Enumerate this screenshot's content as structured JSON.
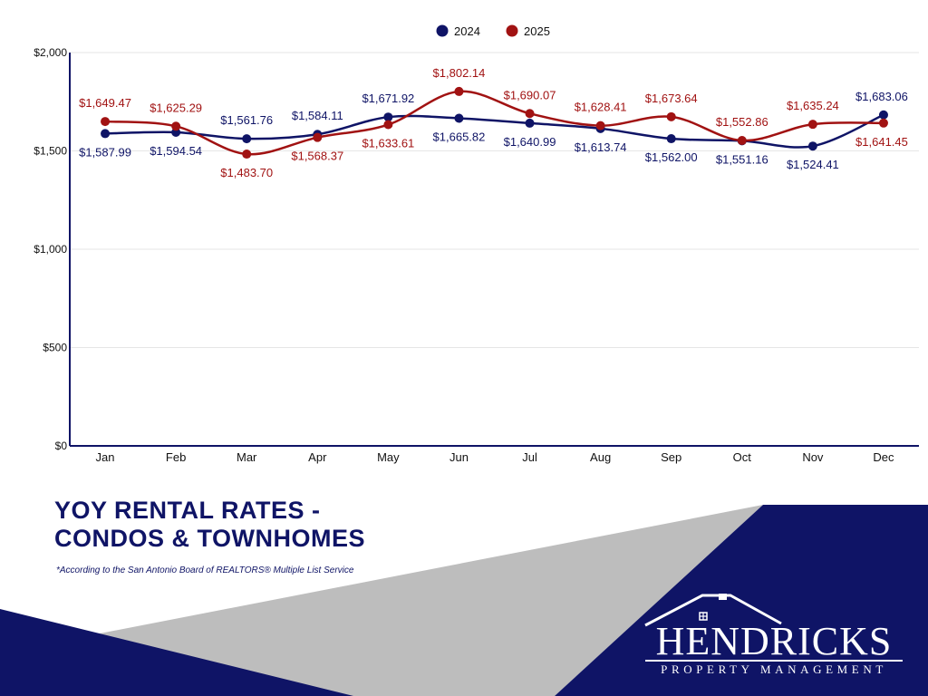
{
  "chart_data": {
    "type": "line",
    "categories": [
      "Jan",
      "Feb",
      "Mar",
      "Apr",
      "May",
      "Jun",
      "Jul",
      "Aug",
      "Sep",
      "Oct",
      "Nov",
      "Dec"
    ],
    "series": [
      {
        "name": "2024",
        "color": "#0f1466",
        "values": [
          1587.99,
          1594.54,
          1561.76,
          1584.11,
          1671.92,
          1665.82,
          1640.99,
          1613.74,
          1562.0,
          1551.16,
          1524.41,
          1683.06
        ],
        "labels": [
          "$1,587.99",
          "$1,594.54",
          "$1,561.76",
          "$1,584.11",
          "$1,671.92",
          "$1,665.82",
          "$1,640.99",
          "$1,613.74",
          "$1,562.00",
          "$1,551.16",
          "$1,524.41",
          "$1,683.06"
        ]
      },
      {
        "name": "2025",
        "color": "#a11212",
        "values": [
          1649.47,
          1625.29,
          1483.7,
          1568.37,
          1633.61,
          1802.14,
          1690.07,
          1628.41,
          1673.64,
          1552.86,
          1635.24,
          1641.45
        ],
        "labels": [
          "$1,649.47",
          "$1,625.29",
          "$1,483.70",
          "$1,568.37",
          "$1,633.61",
          "$1,802.14",
          "$1,690.07",
          "$1,628.41",
          "$1,673.64",
          "$1,552.86",
          "$1,635.24",
          "$1,641.45"
        ]
      }
    ],
    "yticks": [
      0,
      500,
      1000,
      1500,
      2000
    ],
    "ytick_labels": [
      "$0",
      "$500",
      "$1,000",
      "$1,500",
      "$2,000"
    ],
    "ylim": [
      0,
      2000
    ],
    "grid": true,
    "legend_position": "top-center"
  },
  "title_line1": "YOY RENTAL RATES -",
  "title_line2": "CONDOS & TOWNHOMES",
  "footnote": "*According to the San Antonio Board of REALTORS® Multiple List Service",
  "brand": {
    "name": "HENDRICKS",
    "tagline": "PROPERTY MANAGEMENT"
  },
  "colors": {
    "navy": "#0f1466",
    "red": "#a11212",
    "gray": "#bdbdbd"
  }
}
